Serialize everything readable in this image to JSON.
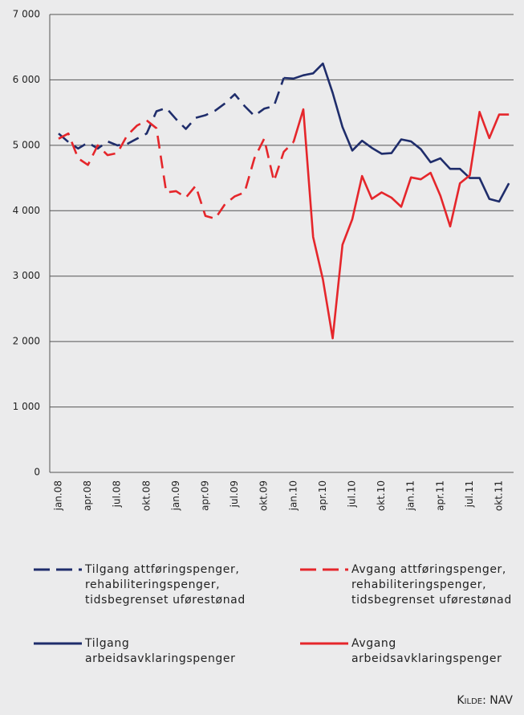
{
  "chart_data": {
    "type": "line",
    "categories": [
      "jan.08",
      null,
      null,
      "apr.08",
      null,
      null,
      "jul.08",
      null,
      null,
      "okt.08",
      null,
      null,
      "jan.09",
      null,
      null,
      "apr.09",
      null,
      null,
      "jul.09",
      null,
      null,
      "okt.09",
      null,
      null,
      "jan.10",
      null,
      null,
      "apr.10",
      null,
      null,
      "jul.10",
      null,
      null,
      "okt.10",
      null,
      null,
      "jan.11",
      null,
      null,
      "apr.11",
      null,
      null,
      "jul.11",
      null,
      null,
      "okt.11",
      null
    ],
    "series": [
      {
        "name": "Tilgang attføringspenger, rehabiliteringspenger, tidsbegrenset uførestønad",
        "color": "#1f2d6b",
        "dashed": true,
        "values": [
          5180,
          5050,
          4950,
          5040,
          4950,
          5060,
          5000,
          5020,
          5100,
          5180,
          5520,
          5570,
          5400,
          5250,
          5420,
          5460,
          5530,
          5640,
          5780,
          5600,
          5450,
          5560,
          5600,
          6030,
          null,
          null,
          null,
          null,
          null,
          null,
          null,
          null,
          null,
          null,
          null,
          null,
          null,
          null,
          null,
          null,
          null,
          null,
          null,
          null,
          null,
          null,
          null
        ]
      },
      {
        "name": "Avgang attføringspenger, rehabiliteringspenger, tidsbegrenset uførestønad",
        "color": "#e5262b",
        "dashed": true,
        "values": [
          5100,
          5180,
          4800,
          4700,
          5000,
          4850,
          4880,
          5150,
          5300,
          5380,
          5260,
          4280,
          4300,
          4200,
          4380,
          3920,
          3880,
          4100,
          4220,
          4280,
          4800,
          5100,
          4450,
          4900,
          5050,
          null,
          null,
          null,
          null,
          null,
          null,
          null,
          null,
          null,
          null,
          null,
          null,
          null,
          null,
          null,
          null,
          null,
          null,
          null,
          null,
          null,
          null
        ]
      },
      {
        "name": "Tilgang arbeidsavklaringspenger",
        "color": "#1f2d6b",
        "dashed": false,
        "values": [
          null,
          null,
          null,
          null,
          null,
          null,
          null,
          null,
          null,
          null,
          null,
          null,
          null,
          null,
          null,
          null,
          null,
          null,
          null,
          null,
          null,
          null,
          null,
          6030,
          6020,
          6070,
          6100,
          6250,
          5800,
          5280,
          4920,
          5070,
          4960,
          4870,
          4880,
          5090,
          5060,
          4940,
          4740,
          4800,
          4640,
          4640,
          4500,
          4500,
          4180,
          4140,
          4420
        ]
      },
      {
        "name": "Avgang arbeidsavklaringspenger",
        "color": "#e5262b",
        "dashed": false,
        "values": [
          null,
          null,
          null,
          null,
          null,
          null,
          null,
          null,
          null,
          null,
          null,
          null,
          null,
          null,
          null,
          null,
          null,
          null,
          null,
          null,
          null,
          null,
          null,
          null,
          5050,
          5550,
          3600,
          2950,
          2050,
          3480,
          3870,
          4530,
          4180,
          4280,
          4200,
          4060,
          4510,
          4480,
          4580,
          4230,
          3760,
          4420,
          4540,
          5510,
          5110,
          5470,
          5470
        ]
      }
    ],
    "ylim": [
      0,
      7000
    ],
    "yticks": [
      0,
      {
        "value": 1000,
        "label": "1 000"
      },
      {
        "value": 2000,
        "label": "2 000"
      },
      {
        "value": 3000,
        "label": "3 000"
      },
      {
        "value": 4000,
        "label": "4 000"
      },
      {
        "value": 5000,
        "label": "5 000"
      },
      {
        "value": 6000,
        "label": "6 000"
      },
      {
        "value": 7000,
        "label": "7 000"
      }
    ],
    "grid": true,
    "source": "Kilde: NAV"
  }
}
